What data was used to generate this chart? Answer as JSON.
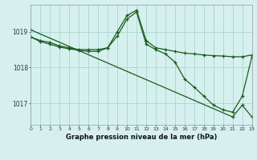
{
  "title": "Graphe pression niveau de la mer (hPa)",
  "bg_color": "#d6f0f0",
  "grid_color": "#b0d8d0",
  "line_color": "#1a5c1a",
  "hours": [
    0,
    1,
    2,
    3,
    4,
    5,
    6,
    7,
    8,
    9,
    10,
    11,
    12,
    13,
    14,
    15,
    16,
    17,
    18,
    19,
    20,
    21,
    22,
    23
  ],
  "line1": [
    1018.85,
    1018.75,
    1018.7,
    1018.6,
    1018.55,
    1018.5,
    1018.5,
    1018.5,
    1018.55,
    1019.0,
    1019.45,
    1019.6,
    1018.75,
    1018.55,
    1018.5,
    1018.45,
    1018.4,
    1018.38,
    1018.35,
    1018.33,
    1018.32,
    1018.3,
    1018.3,
    1018.35
  ],
  "line2": [
    1018.85,
    1018.72,
    1018.65,
    1018.57,
    1018.52,
    1018.48,
    1018.45,
    1018.45,
    1018.55,
    1018.88,
    1019.35,
    1019.55,
    1018.65,
    1018.5,
    1018.38,
    1018.15,
    1017.68,
    1017.45,
    1017.2,
    1016.95,
    1016.82,
    1016.75,
    1017.2,
    1018.3
  ],
  "line3_x": [
    0,
    21,
    22,
    23
  ],
  "line3_y": [
    1019.05,
    1016.62,
    1016.95,
    1016.62
  ],
  "ylim": [
    1016.4,
    1019.75
  ],
  "yticks": [
    1017,
    1018,
    1019
  ],
  "xlim": [
    0,
    23
  ]
}
